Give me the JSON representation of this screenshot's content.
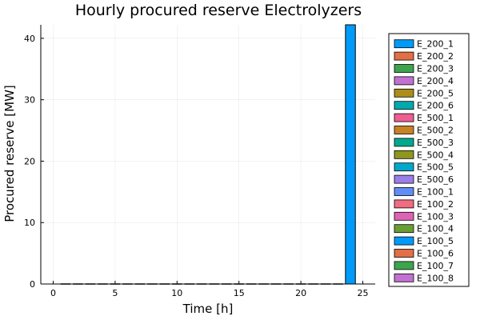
{
  "chart_data": {
    "type": "bar",
    "title": "Hourly procured reserve Electrolyzers",
    "xlabel": "Time [h]",
    "ylabel": "Procured reserve [MW]",
    "xlim": [
      -1,
      26
    ],
    "ylim": [
      0,
      42.2
    ],
    "xticks": [
      0,
      5,
      10,
      15,
      20,
      25
    ],
    "yticks": [
      0,
      10,
      20,
      30,
      40
    ],
    "grid": true,
    "legend_position": "outside-right",
    "hours": [
      1,
      2,
      3,
      4,
      5,
      6,
      7,
      8,
      9,
      10,
      11,
      12,
      13,
      14,
      15,
      16,
      17,
      18,
      19,
      20,
      21,
      22,
      23,
      24
    ],
    "series": [
      {
        "name": "E_200_1",
        "color": "#009af9",
        "values": [
          0,
          0,
          0,
          0,
          0,
          0,
          0,
          0,
          0,
          0,
          0,
          0,
          0,
          0,
          0,
          0,
          0,
          0,
          0,
          0,
          0,
          0,
          0,
          42.2
        ]
      },
      {
        "name": "E_200_2",
        "color": "#e26f46",
        "values": [
          0,
          0,
          0,
          0,
          0,
          0,
          0,
          0,
          0,
          0,
          0,
          0,
          0,
          0,
          0,
          0,
          0,
          0,
          0,
          0,
          0,
          0,
          0,
          0
        ]
      },
      {
        "name": "E_200_3",
        "color": "#3da44d",
        "values": [
          0,
          0,
          0,
          0,
          0,
          0,
          0,
          0,
          0,
          0,
          0,
          0,
          0,
          0,
          0,
          0,
          0,
          0,
          0,
          0,
          0,
          0,
          0,
          0
        ]
      },
      {
        "name": "E_200_4",
        "color": "#c271d2",
        "values": [
          0,
          0,
          0,
          0,
          0,
          0,
          0,
          0,
          0,
          0,
          0,
          0,
          0,
          0,
          0,
          0,
          0,
          0,
          0,
          0,
          0,
          0,
          0,
          0
        ]
      },
      {
        "name": "E_200_5",
        "color": "#ac8d18",
        "values": [
          0,
          0,
          0,
          0,
          0,
          0,
          0,
          0,
          0,
          0,
          0,
          0,
          0,
          0,
          0,
          0,
          0,
          0,
          0,
          0,
          0,
          0,
          0,
          0
        ]
      },
      {
        "name": "E_200_6",
        "color": "#00a9ad",
        "values": [
          0,
          0,
          0,
          0,
          0,
          0,
          0,
          0,
          0,
          0,
          0,
          0,
          0,
          0,
          0,
          0,
          0,
          0,
          0,
          0,
          0,
          0,
          0,
          0
        ]
      },
      {
        "name": "E_500_1",
        "color": "#ed5e93",
        "values": [
          0,
          0,
          0,
          0,
          0,
          0,
          0,
          0,
          0,
          0,
          0,
          0,
          0,
          0,
          0,
          0,
          0,
          0,
          0,
          0,
          0,
          0,
          0,
          0
        ]
      },
      {
        "name": "E_500_2",
        "color": "#c68225",
        "values": [
          0,
          0,
          0,
          0,
          0,
          0,
          0,
          0,
          0,
          0,
          0,
          0,
          0,
          0,
          0,
          0,
          0,
          0,
          0,
          0,
          0,
          0,
          0,
          0
        ]
      },
      {
        "name": "E_500_3",
        "color": "#00a98d",
        "values": [
          0,
          0,
          0,
          0,
          0,
          0,
          0,
          0,
          0,
          0,
          0,
          0,
          0,
          0,
          0,
          0,
          0,
          0,
          0,
          0,
          0,
          0,
          0,
          0
        ]
      },
      {
        "name": "E_500_4",
        "color": "#8e971e",
        "values": [
          0,
          0,
          0,
          0,
          0,
          0,
          0,
          0,
          0,
          0,
          0,
          0,
          0,
          0,
          0,
          0,
          0,
          0,
          0,
          0,
          0,
          0,
          0,
          0
        ]
      },
      {
        "name": "E_500_5",
        "color": "#00a8cb",
        "values": [
          0,
          0,
          0,
          0,
          0,
          0,
          0,
          0,
          0,
          0,
          0,
          0,
          0,
          0,
          0,
          0,
          0,
          0,
          0,
          0,
          0,
          0,
          0,
          0
        ]
      },
      {
        "name": "E_500_6",
        "color": "#9b7fe9",
        "values": [
          0,
          0,
          0,
          0,
          0,
          0,
          0,
          0,
          0,
          0,
          0,
          0,
          0,
          0,
          0,
          0,
          0,
          0,
          0,
          0,
          0,
          0,
          0,
          0
        ]
      },
      {
        "name": "E_100_1",
        "color": "#618df6",
        "values": [
          0,
          0,
          0,
          0,
          0,
          0,
          0,
          0,
          0,
          0,
          0,
          0,
          0,
          0,
          0,
          0,
          0,
          0,
          0,
          0,
          0,
          0,
          0,
          0
        ]
      },
      {
        "name": "E_100_2",
        "color": "#f16c82",
        "values": [
          0,
          0,
          0,
          0,
          0,
          0,
          0,
          0,
          0,
          0,
          0,
          0,
          0,
          0,
          0,
          0,
          0,
          0,
          0,
          0,
          0,
          0,
          0,
          0
        ]
      },
      {
        "name": "E_100_3",
        "color": "#dd64b5",
        "values": [
          0,
          0,
          0,
          0,
          0,
          0,
          0,
          0,
          0,
          0,
          0,
          0,
          0,
          0,
          0,
          0,
          0,
          0,
          0,
          0,
          0,
          0,
          0,
          0
        ]
      },
      {
        "name": "E_100_4",
        "color": "#6b9d36",
        "values": [
          0,
          0,
          0,
          0,
          0,
          0,
          0,
          0,
          0,
          0,
          0,
          0,
          0,
          0,
          0,
          0,
          0,
          0,
          0,
          0,
          0,
          0,
          0,
          0
        ]
      },
      {
        "name": "E_100_5",
        "color": "#009af9",
        "values": [
          0,
          0,
          0,
          0,
          0,
          0,
          0,
          0,
          0,
          0,
          0,
          0,
          0,
          0,
          0,
          0,
          0,
          0,
          0,
          0,
          0,
          0,
          0,
          0
        ]
      },
      {
        "name": "E_100_6",
        "color": "#e26f46",
        "values": [
          0,
          0,
          0,
          0,
          0,
          0,
          0,
          0,
          0,
          0,
          0,
          0,
          0,
          0,
          0,
          0,
          0,
          0,
          0,
          0,
          0,
          0,
          0,
          0
        ]
      },
      {
        "name": "E_100_7",
        "color": "#3da44d",
        "values": [
          0,
          0,
          0,
          0,
          0,
          0,
          0,
          0,
          0,
          0,
          0,
          0,
          0,
          0,
          0,
          0,
          0,
          0,
          0,
          0,
          0,
          0,
          0,
          0
        ]
      },
      {
        "name": "E_100_8",
        "color": "#c271d2",
        "values": [
          0,
          0,
          0,
          0,
          0,
          0,
          0,
          0,
          0,
          0,
          0,
          0,
          0,
          0,
          0,
          0,
          0,
          0,
          0,
          0,
          0,
          0,
          0,
          0
        ]
      }
    ]
  }
}
